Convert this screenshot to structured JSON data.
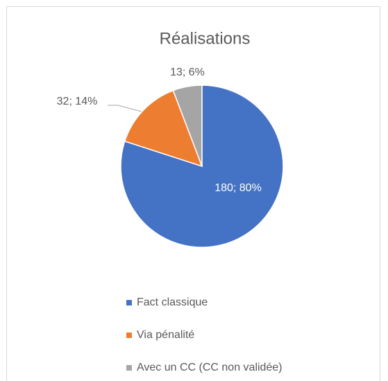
{
  "chart_data": {
    "type": "pie",
    "title": "Réalisations",
    "categories": [
      "Fact classique",
      "Via pénalité",
      "Avec un CC (CC non validée)"
    ],
    "values": [
      180,
      32,
      13
    ],
    "value_labels": [
      "180; 80%",
      "32; 14%",
      "13; 6%"
    ],
    "colors": [
      "#4472c4",
      "#ed7d31",
      "#a5a5a5"
    ],
    "legend": "bottom"
  }
}
